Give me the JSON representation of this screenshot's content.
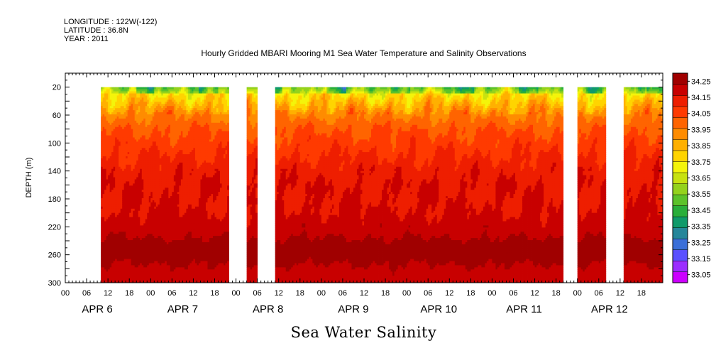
{
  "header": {
    "longitude": "LONGITUDE : 122W(-122)",
    "latitude": "LATITUDE : 36.8N",
    "year": "YEAR : 2011"
  },
  "chart_data": {
    "type": "heatmap",
    "title": "Hourly Gridded MBARI Mooring M1 Sea Water Temperature and Salinity Observations",
    "xlabel": "Sea Water Salinity",
    "ylabel": "DEPTH (m)",
    "x_range_hours": [
      0,
      168
    ],
    "y_range": [
      300,
      0
    ],
    "y_reversed": true,
    "y_ticks": [
      20,
      60,
      100,
      140,
      180,
      220,
      260,
      300
    ],
    "x_hour_labels": [
      "00",
      "06",
      "12",
      "18"
    ],
    "day_labels": [
      "APR  6",
      "APR  7",
      "APR  8",
      "APR  9",
      "APR 10",
      "APR 11",
      "APR 12"
    ],
    "data_depth_top": 20,
    "data_segments_hours": [
      [
        10,
        46
      ],
      [
        51,
        54
      ],
      [
        59,
        140
      ],
      [
        144,
        152
      ],
      [
        157,
        168
      ]
    ],
    "depth_profile": [
      {
        "depth": 20,
        "salinity": 33.6
      },
      {
        "depth": 30,
        "salinity": 33.75
      },
      {
        "depth": 45,
        "salinity": 33.85
      },
      {
        "depth": 60,
        "salinity": 33.95
      },
      {
        "depth": 80,
        "salinity": 34.02
      },
      {
        "depth": 100,
        "salinity": 34.06
      },
      {
        "depth": 120,
        "salinity": 34.1
      },
      {
        "depth": 140,
        "salinity": 34.14
      },
      {
        "depth": 160,
        "salinity": 34.16
      },
      {
        "depth": 180,
        "salinity": 34.16
      },
      {
        "depth": 200,
        "salinity": 34.17
      },
      {
        "depth": 220,
        "salinity": 34.2
      },
      {
        "depth": 240,
        "salinity": 34.24
      },
      {
        "depth": 255,
        "salinity": 34.28
      },
      {
        "depth": 270,
        "salinity": 34.24
      },
      {
        "depth": 285,
        "salinity": 34.21
      },
      {
        "depth": 300,
        "salinity": 34.2
      }
    ],
    "colorbar": {
      "levels": [
        "34.25",
        "34.15",
        "34.05",
        "33.95",
        "33.85",
        "33.75",
        "33.65",
        "33.55",
        "33.45",
        "33.35",
        "33.25",
        "33.15",
        "33.05"
      ],
      "min": 33.0,
      "max": 34.3,
      "colors": [
        "#cc00ff",
        "#9b2dff",
        "#5a50ff",
        "#3a6fd8",
        "#25869a",
        "#0f9a6a",
        "#29ae3a",
        "#5cc22a",
        "#94d21c",
        "#c8e210",
        "#f4f40a",
        "#ffd400",
        "#ffb000",
        "#ff8c00",
        "#ff6400",
        "#ff3a00",
        "#ee1e00",
        "#c80000",
        "#a00000"
      ]
    }
  }
}
